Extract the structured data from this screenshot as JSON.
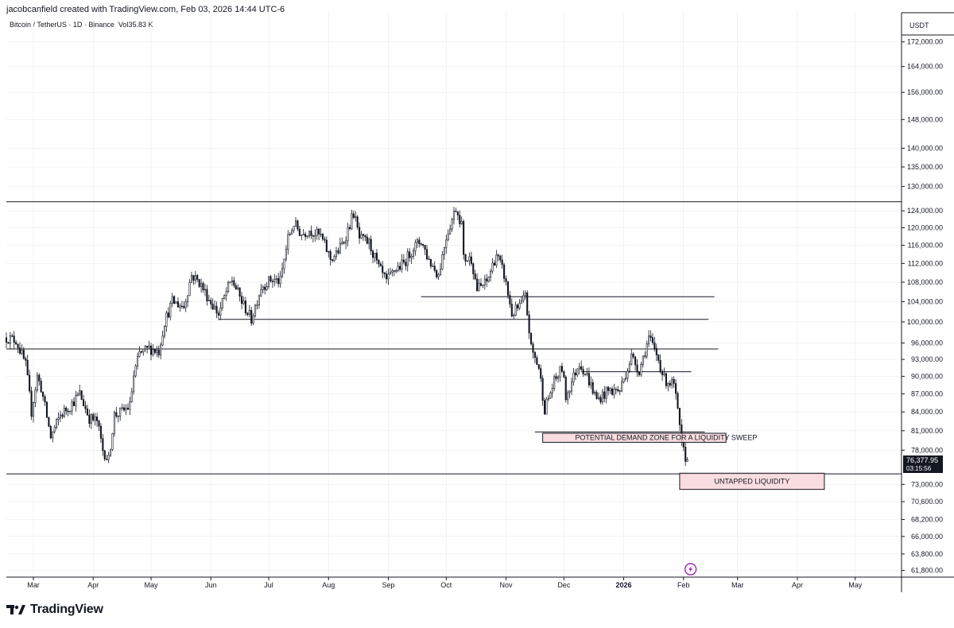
{
  "header": {
    "credit": "jacobcanfield created with TradingView.com, Feb 03, 2026 14:44 UTC-6",
    "symbol": "Bitcoin / TetherUS · 1D · Binance",
    "vol_label": "Vol",
    "vol_value": "35.83 K",
    "unit": "USDT"
  },
  "brand": {
    "name": "TradingView",
    "logo_icon": "tradingview-logo-icon"
  },
  "colors": {
    "candle": "#131722",
    "zone_fill": "#f8d7da",
    "zone_border": "#131722",
    "grid": "#e6e6e6",
    "price_label_bg": "#131722",
    "alert_icon": "#9c27b0"
  },
  "chart_data": {
    "type": "candlestick",
    "x_range": [
      "2025-02-15",
      "2026-05-25"
    ],
    "x_ticks": [
      {
        "label": "Mar",
        "date": "2025-03-01"
      },
      {
        "label": "Apr",
        "date": "2025-04-01"
      },
      {
        "label": "May",
        "date": "2025-05-01"
      },
      {
        "label": "Jun",
        "date": "2025-06-01"
      },
      {
        "label": "Jul",
        "date": "2025-07-01"
      },
      {
        "label": "Aug",
        "date": "2025-08-01"
      },
      {
        "label": "Sep",
        "date": "2025-09-01"
      },
      {
        "label": "Oct",
        "date": "2025-10-01"
      },
      {
        "label": "Nov",
        "date": "2025-11-01"
      },
      {
        "label": "Dec",
        "date": "2025-12-01"
      },
      {
        "label": "2026",
        "date": "2026-01-01",
        "bold": true
      },
      {
        "label": "Feb",
        "date": "2026-02-01"
      },
      {
        "label": "Mar",
        "date": "2026-03-01"
      },
      {
        "label": "Apr",
        "date": "2026-04-01"
      },
      {
        "label": "May",
        "date": "2026-05-01"
      }
    ],
    "y_scale": "log",
    "y_range": [
      61000,
      182000
    ],
    "y_ticks": [
      {
        "label": "172,000.00",
        "value": 172000
      },
      {
        "label": "164,000.00",
        "value": 164000
      },
      {
        "label": "156,000.00",
        "value": 156000
      },
      {
        "label": "148,000.00",
        "value": 148000
      },
      {
        "label": "140,000.00",
        "value": 140000
      },
      {
        "label": "135,000.00",
        "value": 135000
      },
      {
        "label": "130,000.00",
        "value": 130000
      },
      {
        "label": "124,000.00",
        "value": 124000
      },
      {
        "label": "120,000.00",
        "value": 120000
      },
      {
        "label": "116,000.00",
        "value": 116000
      },
      {
        "label": "112,000.00",
        "value": 112000
      },
      {
        "label": "108,000.00",
        "value": 108000
      },
      {
        "label": "104,000.00",
        "value": 104000
      },
      {
        "label": "100,000.00",
        "value": 100000
      },
      {
        "label": "96,000.00",
        "value": 96000
      },
      {
        "label": "93,000.00",
        "value": 93000
      },
      {
        "label": "90,000.00",
        "value": 90000
      },
      {
        "label": "87,000.00",
        "value": 87000
      },
      {
        "label": "84,000.00",
        "value": 84000
      },
      {
        "label": "81,000.00",
        "value": 81000
      },
      {
        "label": "78,000.00",
        "value": 78000
      },
      {
        "label": "73,000.00",
        "value": 73000
      },
      {
        "label": "70,600.00",
        "value": 70600
      },
      {
        "label": "68,200.00",
        "value": 68200
      },
      {
        "label": "66,000.00",
        "value": 66000
      },
      {
        "label": "63,800.00",
        "value": 63800
      },
      {
        "label": "61,800.00",
        "value": 61800
      }
    ],
    "price_path": [
      [
        "2025-02-15",
        97000
      ],
      [
        "2025-02-20",
        96500
      ],
      [
        "2025-02-25",
        92000
      ],
      [
        "2025-02-28",
        84000
      ],
      [
        "2025-03-03",
        90000
      ],
      [
        "2025-03-05",
        88000
      ],
      [
        "2025-03-10",
        80000
      ],
      [
        "2025-03-15",
        83500
      ],
      [
        "2025-03-20",
        85000
      ],
      [
        "2025-03-25",
        87000
      ],
      [
        "2025-03-30",
        83000
      ],
      [
        "2025-04-03",
        82500
      ],
      [
        "2025-04-06",
        78000
      ],
      [
        "2025-04-09",
        76500
      ],
      [
        "2025-04-12",
        83500
      ],
      [
        "2025-04-16",
        84000
      ],
      [
        "2025-04-20",
        85000
      ],
      [
        "2025-04-22",
        90000
      ],
      [
        "2025-04-25",
        94000
      ],
      [
        "2025-04-30",
        95000
      ],
      [
        "2025-05-05",
        94500
      ],
      [
        "2025-05-08",
        100000
      ],
      [
        "2025-05-12",
        104000
      ],
      [
        "2025-05-18",
        103000
      ],
      [
        "2025-05-22",
        109500
      ],
      [
        "2025-05-26",
        108000
      ],
      [
        "2025-05-31",
        104500
      ],
      [
        "2025-06-05",
        101500
      ],
      [
        "2025-06-09",
        106000
      ],
      [
        "2025-06-12",
        108500
      ],
      [
        "2025-06-17",
        104000
      ],
      [
        "2025-06-22",
        100500
      ],
      [
        "2025-06-27",
        107000
      ],
      [
        "2025-07-02",
        108500
      ],
      [
        "2025-07-07",
        108200
      ],
      [
        "2025-07-11",
        117500
      ],
      [
        "2025-07-14",
        121000
      ],
      [
        "2025-07-18",
        118500
      ],
      [
        "2025-07-22",
        119500
      ],
      [
        "2025-07-28",
        118000
      ],
      [
        "2025-08-02",
        113000
      ],
      [
        "2025-08-05",
        114000
      ],
      [
        "2025-08-09",
        117000
      ],
      [
        "2025-08-14",
        123500
      ],
      [
        "2025-08-17",
        117500
      ],
      [
        "2025-08-22",
        116500
      ],
      [
        "2025-08-27",
        111000
      ],
      [
        "2025-08-31",
        108000
      ],
      [
        "2025-09-04",
        110500
      ],
      [
        "2025-09-09",
        112000
      ],
      [
        "2025-09-14",
        115500
      ],
      [
        "2025-09-18",
        117000
      ],
      [
        "2025-09-22",
        112700
      ],
      [
        "2025-09-27",
        109500
      ],
      [
        "2025-10-01",
        118000
      ],
      [
        "2025-10-06",
        124700
      ],
      [
        "2025-10-09",
        121000
      ],
      [
        "2025-10-10",
        113000
      ],
      [
        "2025-10-14",
        113000
      ],
      [
        "2025-10-17",
        106500
      ],
      [
        "2025-10-22",
        108000
      ],
      [
        "2025-10-27",
        114000
      ],
      [
        "2025-10-31",
        109500
      ],
      [
        "2025-11-04",
        101500
      ],
      [
        "2025-11-08",
        103000
      ],
      [
        "2025-11-11",
        105000
      ],
      [
        "2025-11-14",
        95000
      ],
      [
        "2025-11-18",
        91500
      ],
      [
        "2025-11-21",
        84500
      ],
      [
        "2025-11-26",
        89000
      ],
      [
        "2025-11-30",
        91500
      ],
      [
        "2025-12-02",
        86500
      ],
      [
        "2025-12-09",
        92500
      ],
      [
        "2025-12-13",
        90000
      ],
      [
        "2025-12-18",
        86000
      ],
      [
        "2025-12-24",
        87500
      ],
      [
        "2025-12-30",
        87600
      ],
      [
        "2026-01-05",
        93500
      ],
      [
        "2026-01-09",
        91000
      ],
      [
        "2026-01-14",
        97000
      ],
      [
        "2026-01-19",
        93000
      ],
      [
        "2026-01-22",
        89500
      ],
      [
        "2026-01-27",
        88500
      ],
      [
        "2026-01-29",
        84000
      ],
      [
        "2026-01-31",
        78500
      ],
      [
        "2026-02-02",
        77000
      ],
      [
        "2026-02-03",
        76377.95
      ]
    ],
    "horizontal_lines": [
      {
        "value": 126200,
        "from": "2025-02-15",
        "to": "2026-05-25"
      },
      {
        "value": 105000,
        "from": "2025-09-18",
        "to": "2026-02-17"
      },
      {
        "value": 100500,
        "from": "2025-06-05",
        "to": "2026-02-14"
      },
      {
        "value": 94900,
        "from": "2025-02-15",
        "to": "2026-02-19"
      },
      {
        "value": 90800,
        "from": "2025-12-10",
        "to": "2026-02-05"
      },
      {
        "value": 80800,
        "from": "2025-11-16",
        "to": "2026-02-12"
      },
      {
        "value": 74500,
        "from": "2025-02-15",
        "to": "2026-05-25"
      }
    ],
    "zones": [
      {
        "name": "demand-zone",
        "label": "POTENTIAL DEMAND ZONE FOR A LIQUIDITY SWEEP",
        "from": "2025-11-20",
        "to": "2026-02-23",
        "top": 80600,
        "bottom": 79200
      },
      {
        "name": "liquidity-zone",
        "label": "UNTAPPED LIQUIDITY",
        "from": "2026-01-30",
        "to": "2026-04-15",
        "top": 74600,
        "bottom": 72300
      }
    ],
    "last_price": {
      "value": 76377.95,
      "label": "76,377.95",
      "countdown": "03:15:56"
    }
  }
}
